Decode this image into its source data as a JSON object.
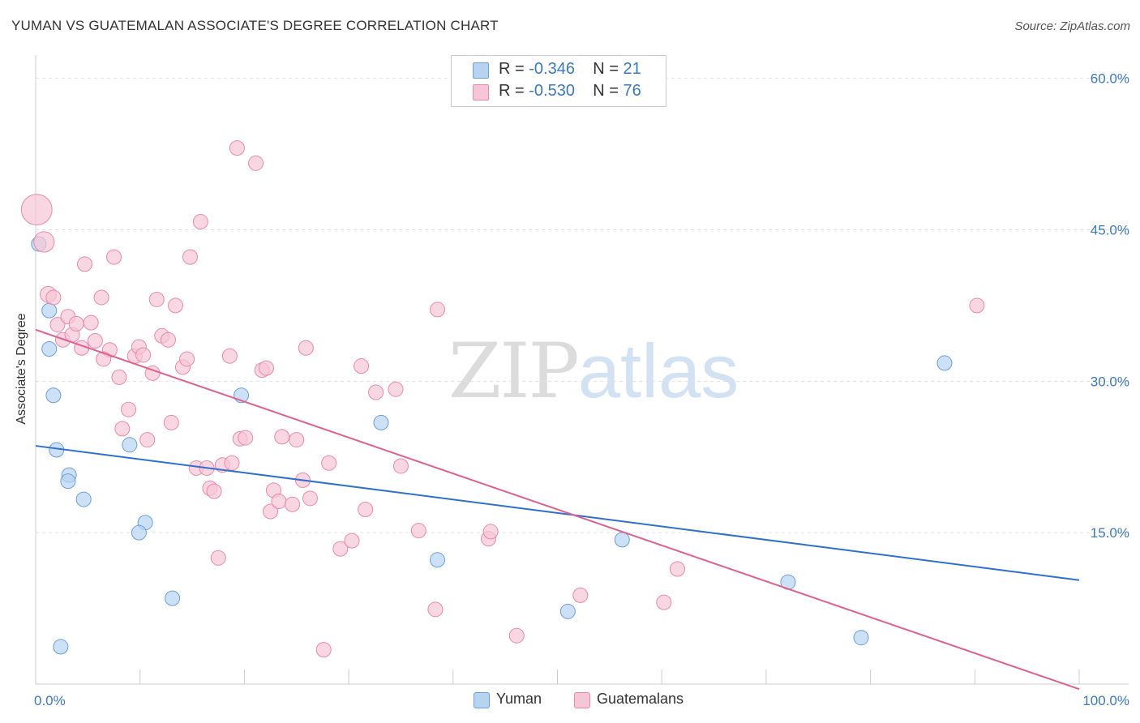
{
  "title": "YUMAN VS GUATEMALAN ASSOCIATE'S DEGREE CORRELATION CHART",
  "source": "Source: ZipAtlas.com",
  "watermark": {
    "zip": "ZIP",
    "atlas": "atlas"
  },
  "colors": {
    "yuman_fill": "#b7d3f2",
    "yuman_stroke": "#6a9fd8",
    "yuman_line": "#2f6fd0",
    "guat_fill": "#f7c6d6",
    "guat_stroke": "#e68aa8",
    "guat_line": "#e0608e",
    "tick_text": "#3a78c8",
    "grid": "#e2e2e2"
  },
  "legend": {
    "rows": [
      {
        "r_label": "R =",
        "r_value": "-0.346",
        "n_label": "N =",
        "n_value": "21"
      },
      {
        "r_label": "R =",
        "r_value": "-0.530",
        "n_label": "N =",
        "n_value": "76"
      }
    ]
  },
  "bottom_legend": [
    "Yuman",
    "Guatemalans"
  ],
  "chart_data": {
    "type": "scatter",
    "title": "YUMAN VS GUATEMALAN ASSOCIATE'S DEGREE CORRELATION CHART",
    "xlabel": "",
    "ylabel": "Associate's Degree",
    "xlim": [
      0,
      100
    ],
    "ylim": [
      0,
      61.5
    ],
    "x_tick_labels": [
      "0.0%",
      "100.0%"
    ],
    "y_ticks": [
      15,
      30,
      45,
      60
    ],
    "y_tick_labels": [
      "15.0%",
      "30.0%",
      "45.0%",
      "60.0%"
    ],
    "grid": true,
    "legend_position": "top-center",
    "series": [
      {
        "name": "Yuman",
        "r": -0.346,
        "n": 21,
        "trend": {
          "x": [
            0,
            100
          ],
          "y": [
            23.6,
            10.3
          ]
        },
        "points": [
          {
            "x": 0.3,
            "y": 43.6,
            "s": 1
          },
          {
            "x": 1.3,
            "y": 37.0,
            "s": 1
          },
          {
            "x": 1.3,
            "y": 33.2,
            "s": 1
          },
          {
            "x": 1.7,
            "y": 28.6,
            "s": 1
          },
          {
            "x": 2.0,
            "y": 23.2,
            "s": 1
          },
          {
            "x": 3.2,
            "y": 20.7,
            "s": 1
          },
          {
            "x": 3.1,
            "y": 20.1,
            "s": 1
          },
          {
            "x": 4.6,
            "y": 18.3,
            "s": 1
          },
          {
            "x": 9.0,
            "y": 23.7,
            "s": 1
          },
          {
            "x": 10.5,
            "y": 16.0,
            "s": 1
          },
          {
            "x": 9.9,
            "y": 15.0,
            "s": 1
          },
          {
            "x": 13.1,
            "y": 8.5,
            "s": 1
          },
          {
            "x": 2.4,
            "y": 3.7,
            "s": 1
          },
          {
            "x": 19.7,
            "y": 28.6,
            "s": 1
          },
          {
            "x": 33.1,
            "y": 25.9,
            "s": 1
          },
          {
            "x": 38.5,
            "y": 12.3,
            "s": 1
          },
          {
            "x": 51.0,
            "y": 7.2,
            "s": 1
          },
          {
            "x": 56.2,
            "y": 14.3,
            "s": 1
          },
          {
            "x": 72.1,
            "y": 10.1,
            "s": 1
          },
          {
            "x": 79.1,
            "y": 4.6,
            "s": 1
          },
          {
            "x": 87.1,
            "y": 31.8,
            "s": 1
          }
        ]
      },
      {
        "name": "Guatemalans",
        "r": -0.53,
        "n": 76,
        "trend": {
          "x": [
            0,
            100
          ],
          "y": [
            35.1,
            -0.5
          ]
        },
        "points": [
          {
            "x": 0.1,
            "y": 47.0,
            "s": 2.1
          },
          {
            "x": 0.8,
            "y": 43.8,
            "s": 1.4
          },
          {
            "x": 1.2,
            "y": 38.6,
            "s": 1.1
          },
          {
            "x": 1.7,
            "y": 38.3,
            "s": 1
          },
          {
            "x": 2.1,
            "y": 35.6,
            "s": 1
          },
          {
            "x": 3.1,
            "y": 36.4,
            "s": 1
          },
          {
            "x": 2.6,
            "y": 34.1,
            "s": 1
          },
          {
            "x": 3.5,
            "y": 34.6,
            "s": 1
          },
          {
            "x": 3.9,
            "y": 35.7,
            "s": 1
          },
          {
            "x": 4.4,
            "y": 33.3,
            "s": 1
          },
          {
            "x": 5.3,
            "y": 35.8,
            "s": 1
          },
          {
            "x": 5.7,
            "y": 34.0,
            "s": 1
          },
          {
            "x": 4.7,
            "y": 41.6,
            "s": 1
          },
          {
            "x": 6.3,
            "y": 38.3,
            "s": 1
          },
          {
            "x": 7.5,
            "y": 42.3,
            "s": 1
          },
          {
            "x": 7.1,
            "y": 33.1,
            "s": 1
          },
          {
            "x": 6.5,
            "y": 32.2,
            "s": 1
          },
          {
            "x": 8.0,
            "y": 30.4,
            "s": 1
          },
          {
            "x": 8.3,
            "y": 25.3,
            "s": 1
          },
          {
            "x": 8.9,
            "y": 27.2,
            "s": 1
          },
          {
            "x": 9.5,
            "y": 32.5,
            "s": 1
          },
          {
            "x": 9.9,
            "y": 33.4,
            "s": 1
          },
          {
            "x": 10.3,
            "y": 32.6,
            "s": 1
          },
          {
            "x": 10.7,
            "y": 24.2,
            "s": 1
          },
          {
            "x": 11.2,
            "y": 30.8,
            "s": 1
          },
          {
            "x": 11.6,
            "y": 38.1,
            "s": 1
          },
          {
            "x": 12.1,
            "y": 34.5,
            "s": 1
          },
          {
            "x": 12.7,
            "y": 34.1,
            "s": 1
          },
          {
            "x": 13.0,
            "y": 25.9,
            "s": 1
          },
          {
            "x": 13.4,
            "y": 37.5,
            "s": 1
          },
          {
            "x": 14.1,
            "y": 31.4,
            "s": 1
          },
          {
            "x": 14.5,
            "y": 32.2,
            "s": 1
          },
          {
            "x": 14.8,
            "y": 42.3,
            "s": 1
          },
          {
            "x": 15.4,
            "y": 21.4,
            "s": 1
          },
          {
            "x": 15.8,
            "y": 45.8,
            "s": 1
          },
          {
            "x": 16.4,
            "y": 21.4,
            "s": 1
          },
          {
            "x": 16.7,
            "y": 19.4,
            "s": 1
          },
          {
            "x": 17.1,
            "y": 19.1,
            "s": 1
          },
          {
            "x": 17.5,
            "y": 12.5,
            "s": 1
          },
          {
            "x": 17.9,
            "y": 21.7,
            "s": 1
          },
          {
            "x": 18.6,
            "y": 32.5,
            "s": 1
          },
          {
            "x": 18.8,
            "y": 21.9,
            "s": 1
          },
          {
            "x": 19.3,
            "y": 53.1,
            "s": 1
          },
          {
            "x": 19.6,
            "y": 24.3,
            "s": 1
          },
          {
            "x": 20.1,
            "y": 24.4,
            "s": 1
          },
          {
            "x": 21.1,
            "y": 51.6,
            "s": 1
          },
          {
            "x": 21.7,
            "y": 31.1,
            "s": 1
          },
          {
            "x": 22.1,
            "y": 31.3,
            "s": 1
          },
          {
            "x": 22.5,
            "y": 17.1,
            "s": 1
          },
          {
            "x": 22.8,
            "y": 19.2,
            "s": 1
          },
          {
            "x": 23.3,
            "y": 18.1,
            "s": 1
          },
          {
            "x": 23.6,
            "y": 24.5,
            "s": 1
          },
          {
            "x": 24.6,
            "y": 17.8,
            "s": 1
          },
          {
            "x": 25.0,
            "y": 24.2,
            "s": 1
          },
          {
            "x": 25.6,
            "y": 20.2,
            "s": 1
          },
          {
            "x": 25.9,
            "y": 33.3,
            "s": 1
          },
          {
            "x": 26.3,
            "y": 18.4,
            "s": 1
          },
          {
            "x": 27.6,
            "y": 3.4,
            "s": 1
          },
          {
            "x": 28.1,
            "y": 21.9,
            "s": 1
          },
          {
            "x": 29.2,
            "y": 13.4,
            "s": 1
          },
          {
            "x": 30.3,
            "y": 14.2,
            "s": 1
          },
          {
            "x": 31.2,
            "y": 31.5,
            "s": 1
          },
          {
            "x": 31.6,
            "y": 17.3,
            "s": 1
          },
          {
            "x": 32.6,
            "y": 28.9,
            "s": 1
          },
          {
            "x": 34.5,
            "y": 29.2,
            "s": 1
          },
          {
            "x": 35.0,
            "y": 21.6,
            "s": 1
          },
          {
            "x": 36.7,
            "y": 15.2,
            "s": 1
          },
          {
            "x": 38.3,
            "y": 7.4,
            "s": 1
          },
          {
            "x": 38.5,
            "y": 37.1,
            "s": 1
          },
          {
            "x": 43.4,
            "y": 14.4,
            "s": 1
          },
          {
            "x": 43.6,
            "y": 15.1,
            "s": 1
          },
          {
            "x": 46.1,
            "y": 4.8,
            "s": 1
          },
          {
            "x": 52.2,
            "y": 8.8,
            "s": 1
          },
          {
            "x": 60.2,
            "y": 8.1,
            "s": 1
          },
          {
            "x": 61.5,
            "y": 11.4,
            "s": 1
          },
          {
            "x": 90.2,
            "y": 37.5,
            "s": 1
          }
        ]
      }
    ]
  }
}
